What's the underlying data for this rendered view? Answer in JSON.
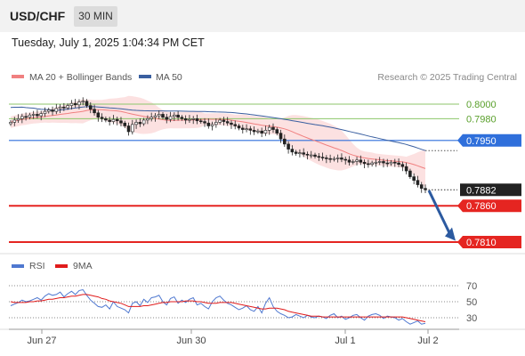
{
  "header": {
    "symbol": "USD/CHF",
    "timeframe": "30 MIN"
  },
  "datetime": "Tuesday, July 1, 2025 1:04:34 PM CET",
  "chart_data": [
    {
      "type": "candlestick",
      "instrument": "USD/CHF",
      "legend": [
        {
          "name": "MA 20 + Bollinger Bands",
          "color": "#f08080"
        },
        {
          "name": "MA 50",
          "color": "#3a5fa0"
        }
      ],
      "copyright": "Research © 2025 Trading Central",
      "x_ticks": [
        "Jun 27",
        "Jun 30",
        "Jul 1",
        "Jul 2"
      ],
      "ylim": [
        0.7795,
        0.8025
      ],
      "levels": [
        {
          "value": 0.8,
          "label": "0.8000",
          "kind": "resistance-green",
          "color": "#8cc66a"
        },
        {
          "value": 0.798,
          "label": "0.7980",
          "kind": "resistance-green",
          "color": "#8cc66a"
        },
        {
          "value": 0.795,
          "label": "0.7950",
          "kind": "pivot",
          "color": "#2f6fdb"
        },
        {
          "value": 0.7882,
          "label": "0.7882",
          "kind": "last-price",
          "color": "#222222"
        },
        {
          "value": 0.786,
          "label": "0.7860",
          "kind": "target",
          "color": "#e52521"
        },
        {
          "value": 0.781,
          "label": "0.7810",
          "kind": "target",
          "color": "#e52521"
        }
      ],
      "close": [
        0.7975,
        0.7978,
        0.798,
        0.7983,
        0.7982,
        0.7985,
        0.7986,
        0.7984,
        0.7987,
        0.799,
        0.7992,
        0.799,
        0.7994,
        0.7996,
        0.7995,
        0.7998,
        0.8001,
        0.7999,
        0.8003,
        0.8004,
        0.7998,
        0.7993,
        0.7988,
        0.7982,
        0.798,
        0.7978,
        0.7976,
        0.7979,
        0.7977,
        0.7974,
        0.797,
        0.7962,
        0.7972,
        0.7975,
        0.7973,
        0.7978,
        0.798,
        0.7982,
        0.7984,
        0.7986,
        0.7982,
        0.7979,
        0.7983,
        0.7985,
        0.7982,
        0.798,
        0.7978,
        0.7979,
        0.798,
        0.7977,
        0.7976,
        0.7974,
        0.797,
        0.7972,
        0.7975,
        0.7978,
        0.7976,
        0.7974,
        0.7972,
        0.797,
        0.7967,
        0.7965,
        0.7966,
        0.7964,
        0.7962,
        0.7963,
        0.796,
        0.7964,
        0.7968,
        0.7965,
        0.796,
        0.7952,
        0.7945,
        0.7938,
        0.7934,
        0.7932,
        0.7933,
        0.7931,
        0.793,
        0.793,
        0.7928,
        0.7927,
        0.7926,
        0.7925,
        0.7924,
        0.7925,
        0.7926,
        0.7924,
        0.7923,
        0.792,
        0.7921,
        0.7923,
        0.792,
        0.7918,
        0.7917,
        0.7919,
        0.792,
        0.7921,
        0.7919,
        0.7918,
        0.792,
        0.7919,
        0.7917,
        0.7914,
        0.7908,
        0.79,
        0.7895,
        0.7889,
        0.7884,
        0.7882
      ],
      "rsi_legend": [
        {
          "name": "RSI",
          "color": "#4f78d0"
        },
        {
          "name": "9MA",
          "color": "#e01b1b"
        }
      ],
      "rsi_levels": [
        70,
        50,
        30
      ],
      "rsi_ylim": [
        20,
        80
      ],
      "rsi": [
        45,
        47,
        49,
        52,
        50,
        51,
        53,
        55,
        52,
        57,
        60,
        58,
        59,
        62,
        56,
        60,
        63,
        59,
        64,
        65,
        58,
        52,
        48,
        44,
        43,
        46,
        41,
        50,
        44,
        42,
        40,
        36,
        48,
        50,
        45,
        53,
        49,
        55,
        56,
        58,
        50,
        46,
        54,
        56,
        48,
        52,
        49,
        53,
        55,
        46,
        48,
        44,
        41,
        50,
        55,
        57,
        52,
        48,
        46,
        43,
        40,
        42,
        45,
        40,
        38,
        44,
        36,
        48,
        55,
        44,
        38,
        35,
        33,
        30,
        31,
        34,
        32,
        30,
        33,
        31,
        30,
        32,
        31,
        29,
        33,
        35,
        30,
        32,
        28,
        30,
        33,
        34,
        30,
        27,
        32,
        34,
        35,
        33,
        29,
        32,
        31,
        30,
        27,
        29,
        25,
        22,
        24,
        26,
        22,
        23
      ],
      "rsi_ma": [
        50,
        49,
        49,
        49,
        49,
        50,
        50,
        51,
        51,
        52,
        53,
        53,
        54,
        55,
        55,
        56,
        57,
        57,
        58,
        59,
        59,
        58,
        57,
        56,
        54,
        53,
        51,
        50,
        49,
        48,
        46,
        44,
        44,
        44,
        44,
        45,
        45,
        46,
        47,
        48,
        49,
        49,
        50,
        50,
        50,
        50,
        51,
        51,
        51,
        50,
        50,
        49,
        48,
        48,
        48,
        49,
        49,
        49,
        49,
        48,
        47,
        46,
        45,
        44,
        43,
        42,
        41,
        41,
        42,
        42,
        42,
        41,
        40,
        38,
        37,
        36,
        35,
        34,
        33,
        32,
        32,
        32,
        31,
        31,
        31,
        31,
        31,
        31,
        31,
        31,
        31,
        31,
        31,
        31,
        31,
        31,
        31,
        31,
        31,
        31,
        31,
        31,
        31,
        31,
        30,
        29,
        28,
        27,
        26,
        25
      ]
    }
  ]
}
